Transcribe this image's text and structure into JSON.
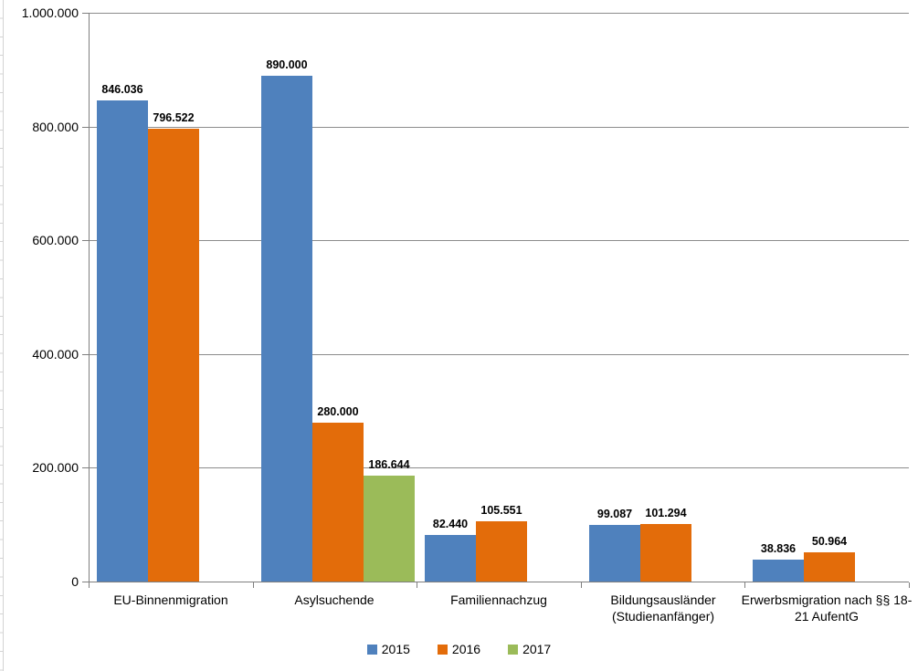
{
  "chart_data": {
    "type": "bar",
    "title": "",
    "xlabel": "",
    "ylabel": "",
    "categories": [
      "EU-Binnenmigration",
      "Asylsuchende",
      "Familiennachzug",
      "Bildungsausländer (Studienanfänger)",
      "Erwerbsmigration nach §§ 18-21 AufentG"
    ],
    "series": [
      {
        "name": "2015",
        "color": "#4F81BD",
        "values": [
          846036,
          890000,
          82440,
          99087,
          38836
        ],
        "value_labels": [
          "846.036",
          "890.000",
          "82.440",
          "99.087",
          "38.836"
        ]
      },
      {
        "name": "2016",
        "color": "#E36C0A",
        "values": [
          796522,
          280000,
          105551,
          101294,
          50964
        ],
        "value_labels": [
          "796.522",
          "280.000",
          "105.551",
          "101.294",
          "50.964"
        ]
      },
      {
        "name": "2017",
        "color": "#9BBB59",
        "values": [
          null,
          186644,
          null,
          null,
          null
        ],
        "value_labels": [
          null,
          "186.644",
          null,
          null,
          null
        ]
      }
    ],
    "ylim": [
      0,
      1000000
    ],
    "ytick_step": 200000,
    "ytick_labels": [
      "0",
      "200.000",
      "400.000",
      "600.000",
      "800.000",
      "1.000.000"
    ],
    "grid": true,
    "legend_position": "bottom"
  },
  "style_colors": {
    "gridline": "#8c8c8c",
    "axis": "#7f7f7f",
    "text": "#000000",
    "worksheet_line": "#d4d4d4"
  }
}
